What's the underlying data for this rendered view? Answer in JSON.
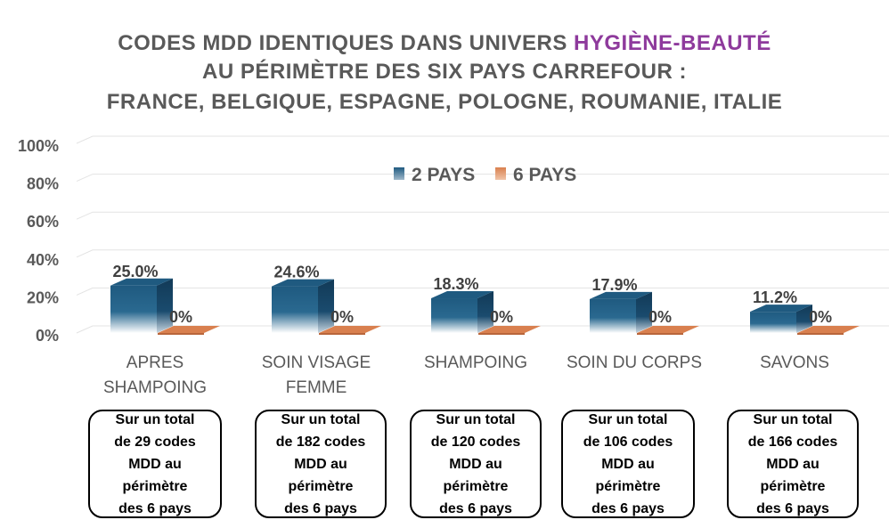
{
  "chart_data": {
    "type": "bar",
    "title": {
      "line1_before": "CODES MDD IDENTIQUES DANS UNIVERS ",
      "line1_highlight": "HYGIÈNE-BEAUTÉ",
      "line2": "AU PÉRIMÈTRE DES SIX PAYS CARREFOUR :",
      "line3": "FRANCE, BELGIQUE, ESPAGNE, POLOGNE, ROUMANIE, ITALIE"
    },
    "categories": [
      [
        "APRES",
        "SHAMPOING"
      ],
      [
        "SOIN VISAGE",
        "FEMME"
      ],
      [
        "SHAMPOING"
      ],
      [
        "SOIN DU CORPS"
      ],
      [
        "SAVONS"
      ]
    ],
    "series": [
      {
        "name": "2 PAYS",
        "values": [
          25.0,
          24.6,
          18.3,
          17.9,
          11.2
        ],
        "labels": [
          "25.0%",
          "24.6%",
          "18.3%",
          "17.9%",
          "11.2%"
        ]
      },
      {
        "name": "6 PAYS",
        "values": [
          0,
          0,
          0,
          0,
          0
        ],
        "labels": [
          "0%",
          "0%",
          "0%",
          "0%",
          "0%"
        ]
      }
    ],
    "yticks": [
      "0%",
      "20%",
      "40%",
      "60%",
      "80%",
      "100%"
    ],
    "ylim": [
      0,
      100
    ],
    "grid": true,
    "legend": "top-center",
    "colors": {
      "series1": "#1F5A80",
      "series1_dark": "#123A57",
      "series2": "#D9804F",
      "title_highlight": "#8E3A9C",
      "text": "#595959"
    }
  },
  "notes": [
    [
      "Sur un total",
      "de 29 codes",
      "MDD au",
      "périmètre",
      "des 6 pays"
    ],
    [
      "Sur un total",
      "de 182 codes",
      "MDD au",
      "périmètre",
      "des 6 pays"
    ],
    [
      "Sur un total",
      "de 120 codes",
      "MDD au",
      "périmètre",
      "des 6 pays"
    ],
    [
      "Sur un total",
      "de 106 codes",
      "MDD au",
      "périmètre",
      "des 6 pays"
    ],
    [
      "Sur un total",
      "de 166 codes",
      "MDD au",
      "périmètre",
      "des 6 pays"
    ]
  ]
}
